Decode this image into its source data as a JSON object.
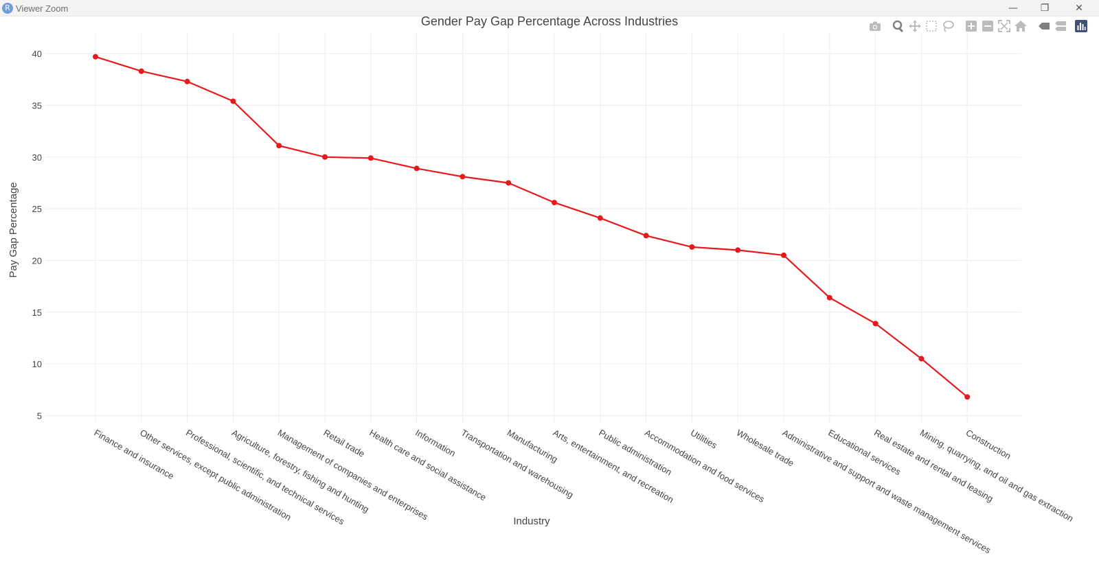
{
  "window": {
    "app_icon_letter": "R",
    "title": "Viewer Zoom",
    "minimize_glyph": "—",
    "restore_glyph": "❐",
    "close_glyph": "✕"
  },
  "modebar": {
    "icons": [
      "camera-icon",
      "zoom-icon",
      "pan-icon",
      "box-select-icon",
      "lasso-icon",
      "zoom-in-icon",
      "zoom-out-icon",
      "autoscale-icon",
      "reset-axes-icon",
      "hover-closest-icon",
      "hover-compare-icon",
      "plotly-logo-icon"
    ],
    "icon_color": "#bcbcbc",
    "active_color": "#7f7f7f",
    "logo_color": "#3f4f75"
  },
  "chart_data": {
    "type": "line",
    "title": "Gender Pay Gap Percentage Across Industries",
    "xlabel": "Industry",
    "ylabel": "Pay Gap Percentage",
    "ylim": [
      4.3,
      42
    ],
    "yticks": [
      5,
      10,
      15,
      20,
      25,
      30,
      35,
      40
    ],
    "grid": true,
    "line_color": "#e8191c",
    "categories": [
      "Finance and insurance",
      "Other services, except public administration",
      "Professional, scientific, and technical services",
      "Agriculture, forestry, fishing and hunting",
      "Management of companies and enterprises",
      "Retail trade",
      "Health care and social assistance",
      "Information",
      "Transportation and warehousing",
      "Manufacturing",
      "Arts, entertainment, and recreation",
      "Public administration",
      "Accommodation and food services",
      "Utilities",
      "Wholesale trade",
      "Administrative and support and waste management services",
      "Educational services",
      "Real estate and rental and leasing",
      "Mining, quarrying, and oil and gas extraction",
      "Construction"
    ],
    "values": [
      39.7,
      38.3,
      37.3,
      35.4,
      31.1,
      30.0,
      29.9,
      28.9,
      28.1,
      27.5,
      25.6,
      24.1,
      22.4,
      21.3,
      21.0,
      20.5,
      16.4,
      13.9,
      10.5,
      6.8
    ]
  }
}
